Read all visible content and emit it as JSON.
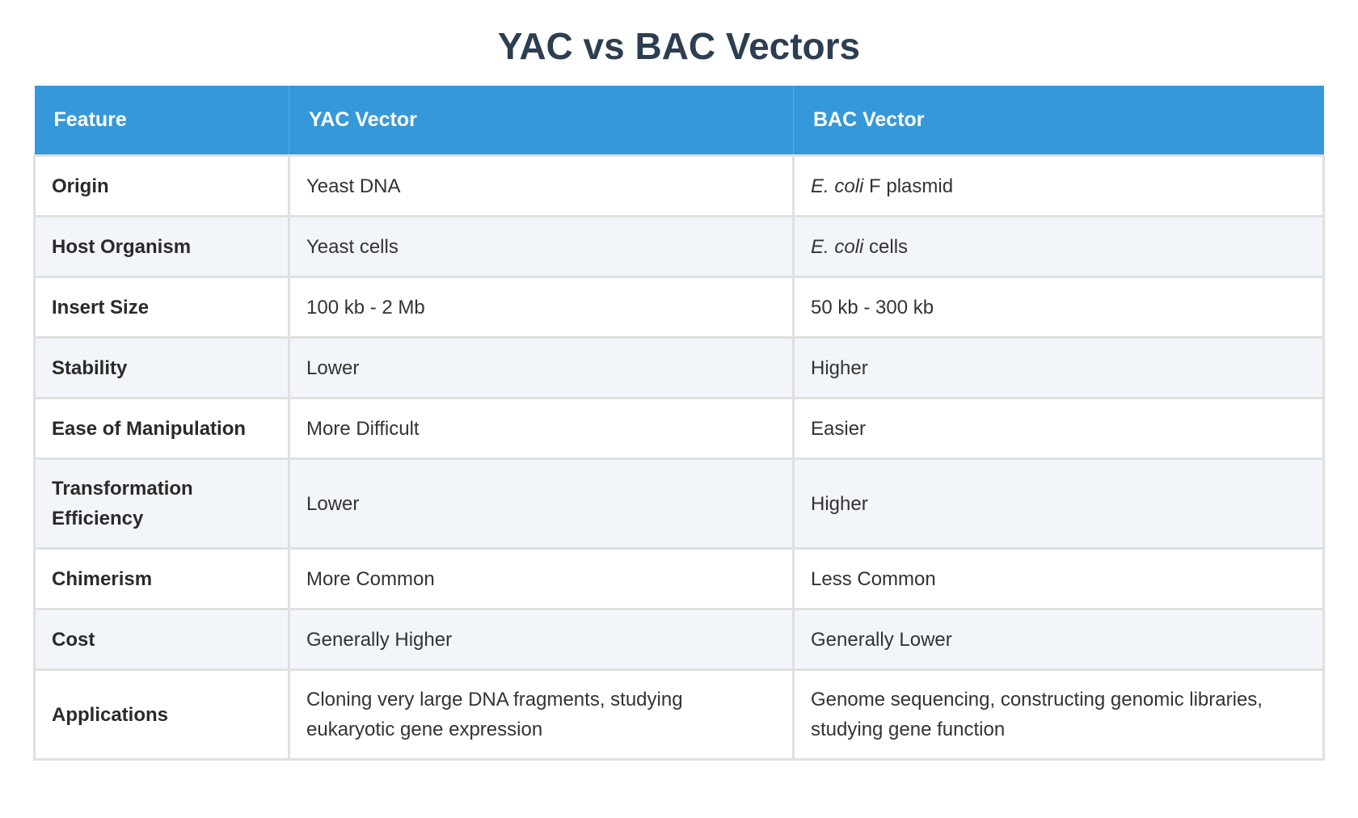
{
  "title": "YAC vs BAC Vectors",
  "header_color": "#3498db",
  "columns": [
    "Feature",
    "YAC Vector",
    "BAC Vector"
  ],
  "rows": [
    {
      "feature": "Origin",
      "yac": "Yeast DNA",
      "bac_italic": "E. coli",
      "bac": " F plasmid"
    },
    {
      "feature": "Host Organism",
      "yac": "Yeast cells",
      "bac_italic": "E. coli",
      "bac": " cells"
    },
    {
      "feature": "Insert Size",
      "yac": "100 kb - 2 Mb",
      "bac_italic": "",
      "bac": "50 kb - 300 kb"
    },
    {
      "feature": "Stability",
      "yac": "Lower",
      "bac_italic": "",
      "bac": "Higher"
    },
    {
      "feature": "Ease of Manipulation",
      "yac": "More Difficult",
      "bac_italic": "",
      "bac": "Easier"
    },
    {
      "feature": "Transformation Efficiency",
      "yac": "Lower",
      "bac_italic": "",
      "bac": "Higher"
    },
    {
      "feature": "Chimerism",
      "yac": "More Common",
      "bac_italic": "",
      "bac": "Less Common"
    },
    {
      "feature": "Cost",
      "yac": "Generally Higher",
      "bac_italic": "",
      "bac": "Generally Lower"
    },
    {
      "feature": "Applications",
      "yac": "Cloning very large DNA fragments, studying eukaryotic gene expression",
      "bac_italic": "",
      "bac": "Genome sequencing, constructing genomic libraries, studying gene function"
    }
  ]
}
